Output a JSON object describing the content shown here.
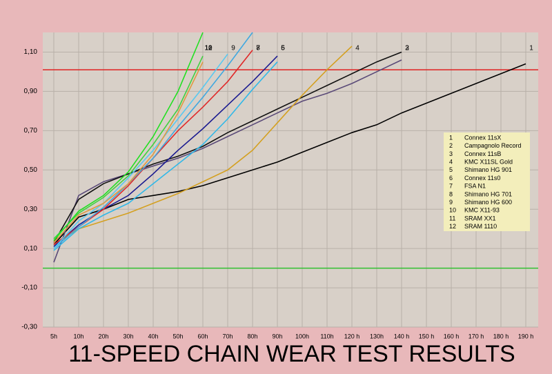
{
  "chart_data": {
    "type": "line",
    "title": "11-SPEED CHAIN WEAR TEST RESULTS",
    "categories": [
      "5h",
      "10h",
      "20h",
      "30h",
      "40h",
      "50h",
      "60h",
      "70h",
      "80h",
      "90h",
      "100h",
      "110h",
      "120 h",
      "130h",
      "140 h",
      "150 h",
      "160 h",
      "170 h",
      "180 h",
      "190 h"
    ],
    "ylim": [
      -0.3,
      1.2
    ],
    "yticks": [
      {
        "value": -0.3,
        "label": "-0,30"
      },
      {
        "value": -0.1,
        "label": "-0,10"
      },
      {
        "value": 0.1,
        "label": "0,10"
      },
      {
        "value": 0.3,
        "label": "0,30"
      },
      {
        "value": 0.5,
        "label": "0,50"
      },
      {
        "value": 0.7,
        "label": "0,70"
      },
      {
        "value": 0.9,
        "label": "0,90"
      },
      {
        "value": 1.1,
        "label": "1,10"
      }
    ],
    "grid": true,
    "reference_lines": [
      {
        "value": 1.01,
        "color": "#e02020"
      },
      {
        "value": 0,
        "color": "#30c030"
      }
    ],
    "legend_position": "right",
    "series": [
      {
        "label": "1",
        "name": "Connex 11sX",
        "color": "#000000",
        "values": [
          0.12,
          0.26,
          0.3,
          0.35,
          0.37,
          0.39,
          0.42,
          0.46,
          0.5,
          0.54,
          0.59,
          0.64,
          0.69,
          0.73,
          0.79,
          0.84,
          0.89,
          0.94,
          0.99,
          1.04
        ]
      },
      {
        "label": "2",
        "name": "Campagnolo Record",
        "color": "#5a4a78",
        "values": [
          0.03,
          0.37,
          0.44,
          0.48,
          0.52,
          0.56,
          0.61,
          0.67,
          0.73,
          0.79,
          0.85,
          0.89,
          0.94,
          1.0,
          1.06,
          null,
          null,
          null,
          null,
          null
        ]
      },
      {
        "label": "3",
        "name": "Connex 11sB",
        "color": "#101010",
        "values": [
          0.13,
          0.35,
          0.43,
          0.48,
          0.53,
          0.57,
          0.62,
          0.69,
          0.75,
          0.81,
          0.87,
          0.93,
          0.99,
          1.05,
          1.1,
          null,
          null,
          null,
          null,
          null
        ]
      },
      {
        "label": "4",
        "name": "KMC X11SL Gold",
        "color": "#d4a020",
        "values": [
          0.12,
          0.2,
          0.24,
          0.28,
          0.33,
          0.38,
          0.44,
          0.5,
          0.6,
          0.74,
          0.88,
          1.01,
          1.13,
          null,
          null,
          null,
          null,
          null,
          null,
          null
        ]
      },
      {
        "label": "5",
        "name": "Shimano HG 901",
        "color": "#30b8e8",
        "values": [
          0.09,
          0.2,
          0.27,
          0.33,
          0.43,
          0.53,
          0.63,
          0.76,
          0.91,
          1.05,
          null,
          null,
          null,
          null,
          null,
          null,
          null,
          null,
          null,
          null
        ]
      },
      {
        "label": "6",
        "name": "Connex 11s0",
        "color": "#1a1a90",
        "values": [
          0.11,
          0.22,
          0.3,
          0.37,
          0.48,
          0.6,
          0.71,
          0.83,
          0.95,
          1.08,
          null,
          null,
          null,
          null,
          null,
          null,
          null,
          null,
          null,
          null
        ]
      },
      {
        "label": "7",
        "name": "FSA N1",
        "color": "#e02828",
        "values": [
          0.12,
          0.21,
          0.3,
          0.42,
          0.56,
          0.7,
          0.82,
          0.95,
          1.11,
          null,
          null,
          null,
          null,
          null,
          null,
          null,
          null,
          null,
          null,
          null
        ]
      },
      {
        "label": "8",
        "name": "Shimano HG 701",
        "color": "#40a8e0",
        "values": [
          0.1,
          0.21,
          0.31,
          0.43,
          0.56,
          0.72,
          0.87,
          1.03,
          1.2,
          null,
          null,
          null,
          null,
          null,
          null,
          null,
          null,
          null,
          null,
          null
        ]
      },
      {
        "label": "9",
        "name": "Shimano HG 600",
        "color": "#58c8f0",
        "values": [
          0.1,
          0.24,
          0.33,
          0.46,
          0.6,
          0.76,
          0.92,
          1.09,
          null,
          null,
          null,
          null,
          null,
          null,
          null,
          null,
          null,
          null,
          null,
          null
        ]
      },
      {
        "label": "10",
        "name": "KMC X11-93",
        "color": "#e09a40",
        "values": [
          0.13,
          0.27,
          0.33,
          0.43,
          0.58,
          0.79,
          1.05,
          null,
          null,
          null,
          null,
          null,
          null,
          null,
          null,
          null,
          null,
          null,
          null,
          null
        ]
      },
      {
        "label": "11",
        "name": "SRAM XX1",
        "color": "#40d040",
        "values": [
          0.15,
          0.28,
          0.36,
          0.47,
          0.63,
          0.81,
          1.08,
          null,
          null,
          null,
          null,
          null,
          null,
          null,
          null,
          null,
          null,
          null,
          null,
          null
        ]
      },
      {
        "label": "12",
        "name": "SRAM 1110",
        "color": "#20e020",
        "values": [
          0.14,
          0.29,
          0.37,
          0.49,
          0.67,
          0.9,
          1.2,
          null,
          null,
          null,
          null,
          null,
          null,
          null,
          null,
          null,
          null,
          null,
          null,
          null
        ]
      }
    ]
  }
}
